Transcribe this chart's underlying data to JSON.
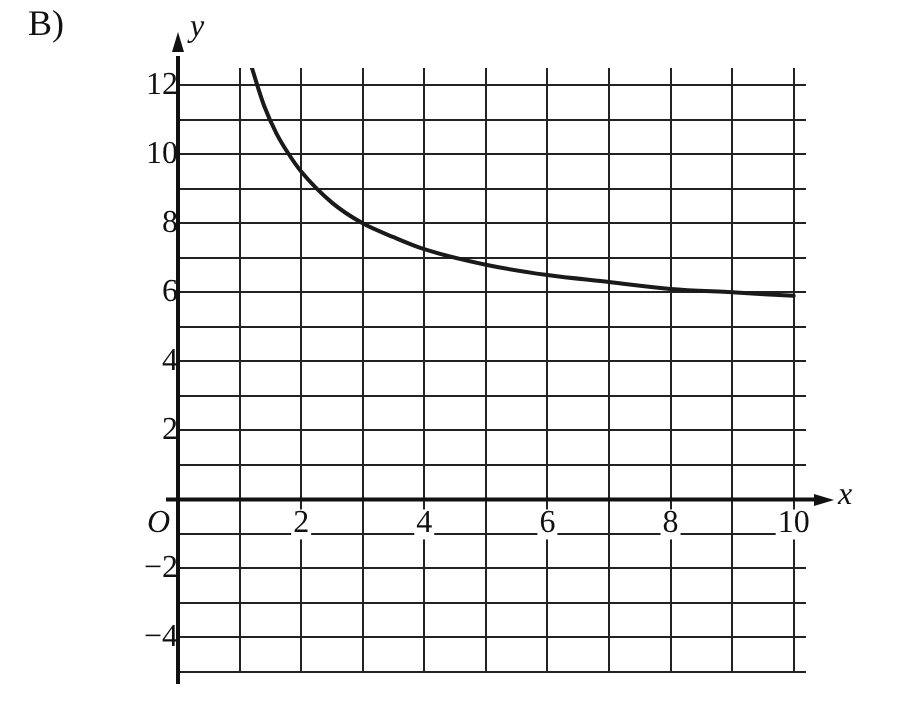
{
  "chart_data": {
    "type": "line",
    "annotations": [
      "B)"
    ],
    "xlabel": "x",
    "ylabel": "y",
    "xlim": [
      0,
      10.2
    ],
    "ylim": [
      -5,
      12.5
    ],
    "xticks": [
      {
        "value": 0,
        "label": "O"
      },
      {
        "value": 1,
        "label": null
      },
      2,
      {
        "value": 3,
        "label": null
      },
      4,
      {
        "value": 5,
        "label": null
      },
      6,
      {
        "value": 7,
        "label": null
      },
      8,
      {
        "value": 9,
        "label": null
      },
      10
    ],
    "yticks": [
      {
        "value": -5,
        "label": null
      },
      -4,
      {
        "value": -3,
        "label": null
      },
      -2,
      {
        "value": -1,
        "label": null
      },
      {
        "value": 0,
        "label": null
      },
      {
        "value": 1,
        "label": null
      },
      2,
      {
        "value": 3,
        "label": null
      },
      4,
      {
        "value": 5,
        "label": null
      },
      6,
      {
        "value": 7,
        "label": null
      },
      8,
      {
        "value": 9,
        "label": null
      },
      10,
      {
        "value": 11,
        "label": null
      },
      12
    ],
    "grid": true,
    "legend": false,
    "marker": "none",
    "line_style": "solid",
    "series": [
      {
        "color": "#1a1a1a",
        "x": [
          1.2,
          1.4,
          1.6,
          1.8,
          2,
          2.5,
          3,
          3.5,
          4,
          5,
          6,
          7,
          8,
          9,
          10
        ],
        "values": [
          12.5,
          11.4,
          10.6,
          10,
          9.5,
          8.6,
          8,
          7.6,
          7.25,
          6.8,
          6.5,
          6.3,
          6.1,
          6,
          5.9
        ]
      }
    ]
  }
}
